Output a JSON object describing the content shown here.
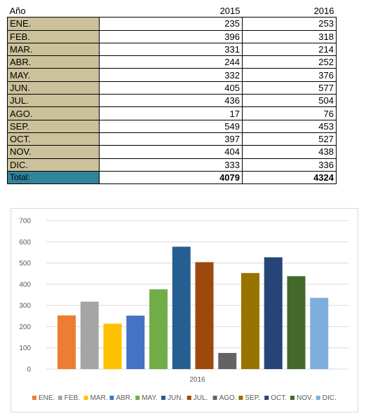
{
  "table": {
    "header": {
      "month_label": "Año",
      "year1": "2015",
      "year2": "2016"
    },
    "rows": [
      {
        "month": "ENE.",
        "v2015": "235",
        "v2016": "253"
      },
      {
        "month": "FEB.",
        "v2015": "396",
        "v2016": "318"
      },
      {
        "month": "MAR.",
        "v2015": "331",
        "v2016": "214"
      },
      {
        "month": "ABR.",
        "v2015": "244",
        "v2016": "252"
      },
      {
        "month": "MAY.",
        "v2015": "332",
        "v2016": "376"
      },
      {
        "month": "JUN.",
        "v2015": "405",
        "v2016": "577"
      },
      {
        "month": "JUL.",
        "v2015": "436",
        "v2016": "504"
      },
      {
        "month": "AGO.",
        "v2015": "17",
        "v2016": "76"
      },
      {
        "month": "SEP.",
        "v2015": "549",
        "v2016": "453"
      },
      {
        "month": "OCT.",
        "v2015": "397",
        "v2016": "527"
      },
      {
        "month": "NOV.",
        "v2015": "404",
        "v2016": "438"
      },
      {
        "month": "DIC.",
        "v2015": "333",
        "v2016": "336"
      }
    ],
    "total": {
      "label": "Total:",
      "v2015": "4079",
      "v2016": "4324"
    },
    "colors": {
      "month_cell": "#cbc19b",
      "total_cell": "#31849b"
    }
  },
  "chart_data": {
    "type": "bar",
    "title": "",
    "categories": [
      "2016"
    ],
    "xlabel": "",
    "ylabel": "",
    "ylim": [
      0,
      700
    ],
    "yticks": [
      0,
      100,
      200,
      300,
      400,
      500,
      600,
      700
    ],
    "grid": true,
    "legend_position": "bottom",
    "series": [
      {
        "name": "ENE.",
        "values": [
          253
        ],
        "color": "#ed7d31"
      },
      {
        "name": "FEB.",
        "values": [
          318
        ],
        "color": "#a5a5a5"
      },
      {
        "name": "MAR.",
        "values": [
          214
        ],
        "color": "#ffc000"
      },
      {
        "name": "ABR.",
        "values": [
          252
        ],
        "color": "#4472c4"
      },
      {
        "name": "MAY.",
        "values": [
          376
        ],
        "color": "#70ad47"
      },
      {
        "name": "JUN.",
        "values": [
          577
        ],
        "color": "#255e91"
      },
      {
        "name": "JUL.",
        "values": [
          504
        ],
        "color": "#9e480e"
      },
      {
        "name": "AGO.",
        "values": [
          76
        ],
        "color": "#636363"
      },
      {
        "name": "SEP.",
        "values": [
          453
        ],
        "color": "#997300"
      },
      {
        "name": "OCT.",
        "values": [
          527
        ],
        "color": "#264478"
      },
      {
        "name": "NOV.",
        "values": [
          438
        ],
        "color": "#43682b"
      },
      {
        "name": "DIC.",
        "values": [
          336
        ],
        "color": "#7cafdd"
      }
    ]
  }
}
